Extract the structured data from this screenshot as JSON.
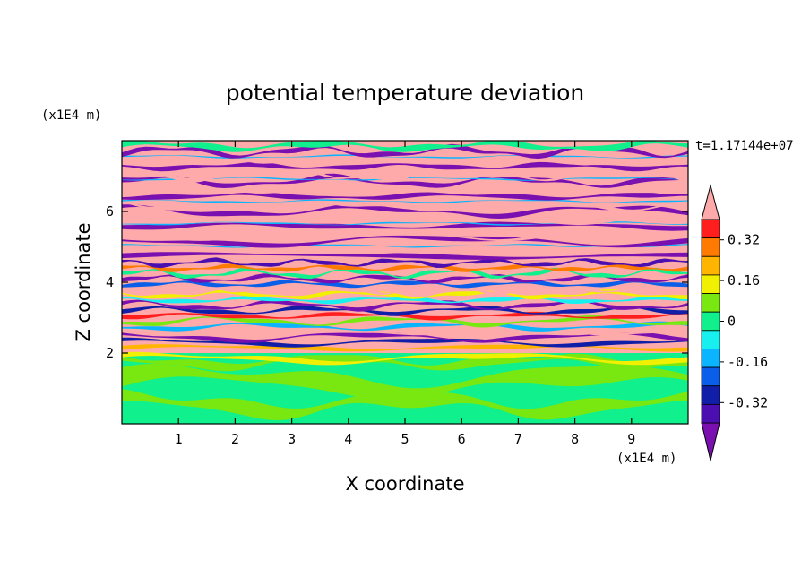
{
  "chart_data": {
    "type": "heatmap",
    "title": "potential temperature deviation",
    "xlabel": "X coordinate",
    "ylabel": "Z coordinate",
    "x_unit": "(x1E4 m)",
    "y_unit": "(x1E4 m)",
    "time_label": "t=1.17144e+07",
    "xlim": [
      0,
      10
    ],
    "ylim": [
      0,
      8
    ],
    "x_ticks": [
      1,
      2,
      3,
      4,
      5,
      6,
      7,
      8,
      9
    ],
    "y_ticks": [
      2,
      4,
      6
    ],
    "colorbar": {
      "levels": [
        -0.48,
        -0.4,
        -0.32,
        -0.24,
        -0.16,
        -0.08,
        0,
        0.08,
        0.16,
        0.24,
        0.32,
        0.4,
        0.48
      ],
      "tick_labels": [
        "0.32",
        "0.16",
        "0",
        "-0.16",
        "-0.32"
      ],
      "tick_values": [
        0.32,
        0.16,
        0,
        -0.16,
        -0.32
      ],
      "colors": [
        "#7a10b0",
        "#4b0eb0",
        "#101ea8",
        "#0a5ee8",
        "#0ab4ff",
        "#18f0f0",
        "#10f08c",
        "#78e810",
        "#f0f000",
        "#ffb400",
        "#ff7a00",
        "#ff1e1e",
        "#ffaaaa"
      ],
      "extend": "both"
    }
  }
}
